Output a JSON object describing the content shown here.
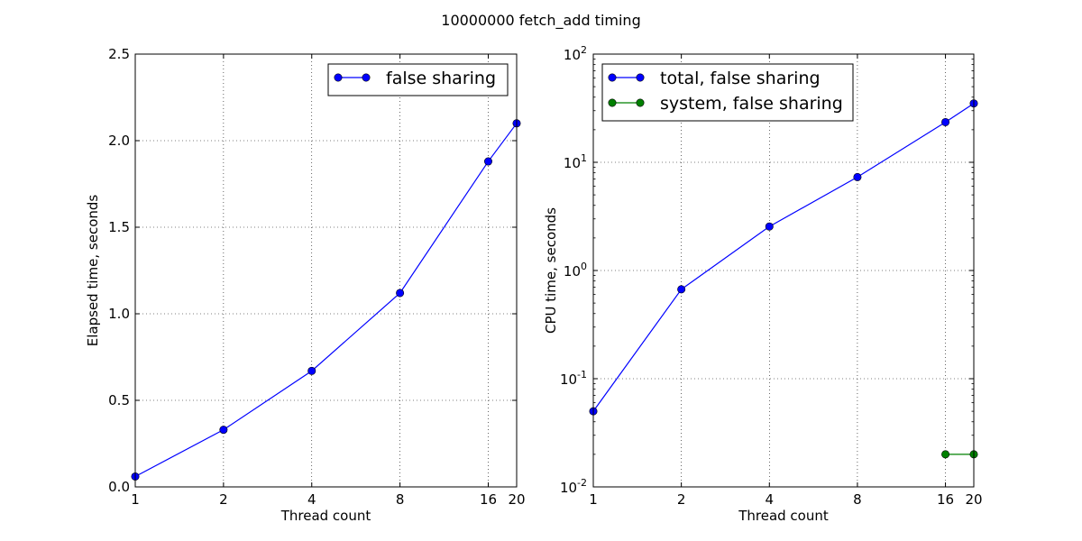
{
  "figure_title": "10000000 fetch_add timing",
  "chart_data": [
    {
      "type": "line",
      "title": "",
      "xlabel": "Thread count",
      "ylabel": "Elapsed time, seconds",
      "xscale": "log2",
      "yscale": "linear",
      "xlim": [
        1,
        20
      ],
      "ylim": [
        0,
        2.5
      ],
      "x_ticks": [
        1,
        2,
        4,
        8,
        16,
        20
      ],
      "x_tick_labels": [
        "1",
        "2",
        "4",
        "8",
        "16",
        "20"
      ],
      "y_ticks": [
        0,
        0.5,
        1.0,
        1.5,
        2.0,
        2.5
      ],
      "y_tick_labels": [
        "0.0",
        "0.5",
        "1.0",
        "1.5",
        "2.0",
        "2.5"
      ],
      "grid": true,
      "legend_position": "top-right",
      "series": [
        {
          "name": "false sharing",
          "color": "#0000ff",
          "x": [
            1,
            2,
            4,
            8,
            16,
            20
          ],
          "y": [
            0.06,
            0.33,
            0.67,
            1.12,
            1.88,
            2.1
          ]
        }
      ]
    },
    {
      "type": "line",
      "title": "",
      "xlabel": "Thread count",
      "ylabel": "CPU time, seconds",
      "xscale": "log2",
      "yscale": "log10",
      "xlim": [
        1,
        20
      ],
      "ylim": [
        0.01,
        100
      ],
      "x_ticks": [
        1,
        2,
        4,
        8,
        16,
        20
      ],
      "x_tick_labels": [
        "1",
        "2",
        "4",
        "8",
        "16",
        "20"
      ],
      "y_ticks": [
        0.01,
        0.1,
        1,
        10,
        100
      ],
      "y_tick_labels": [
        {
          "base": "10",
          "exp": "-2"
        },
        {
          "base": "10",
          "exp": "-1"
        },
        {
          "base": "10",
          "exp": "0"
        },
        {
          "base": "10",
          "exp": "1"
        },
        {
          "base": "10",
          "exp": "2"
        }
      ],
      "grid": true,
      "legend_position": "top-left",
      "series": [
        {
          "name": "total, false sharing",
          "color": "#0000ff",
          "x": [
            1,
            2,
            4,
            8,
            16,
            20
          ],
          "y": [
            0.05,
            0.67,
            2.55,
            7.3,
            23.5,
            35
          ]
        },
        {
          "name": "system, false sharing",
          "color": "#008000",
          "x": [
            16,
            20
          ],
          "y": [
            0.02,
            0.02
          ]
        }
      ]
    }
  ]
}
